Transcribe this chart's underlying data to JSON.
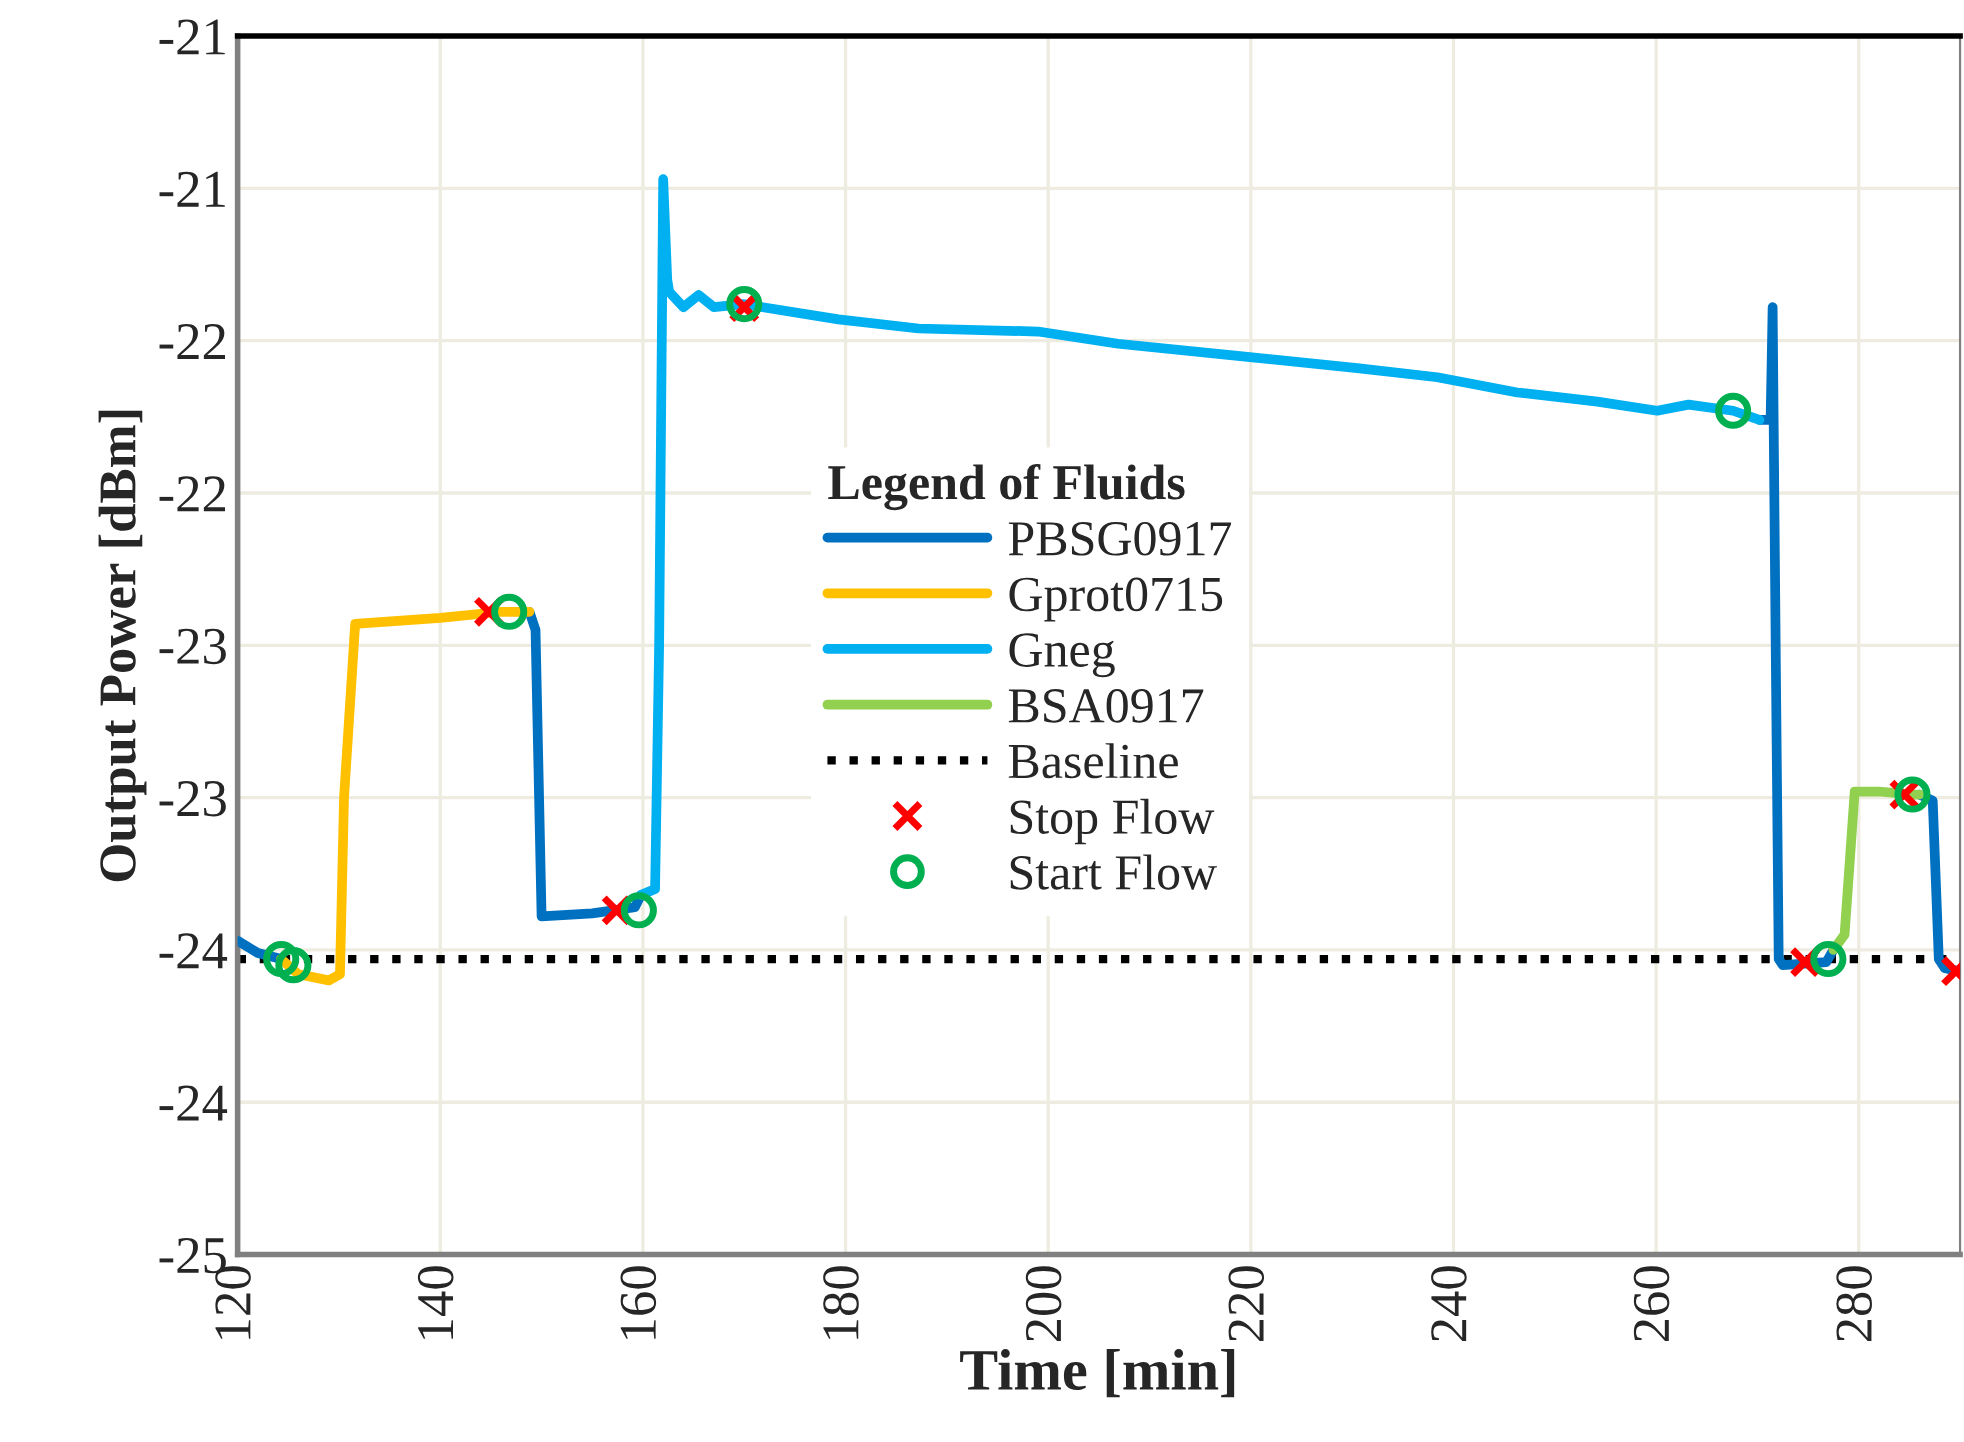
{
  "chart_data": {
    "type": "line",
    "xlabel": "Time [min]",
    "ylabel": "Output Power [dBm]",
    "legend_title": "Legend of Fluids",
    "xlim": [
      120,
      290
    ],
    "xticks": [
      120,
      140,
      160,
      180,
      200,
      220,
      240,
      260,
      280
    ],
    "ylim": [
      -24.5,
      -20.5
    ],
    "yticks": [
      {
        "value": -24.5,
        "label": "-25"
      },
      {
        "value": -24.0,
        "label": "-24"
      },
      {
        "value": -23.5,
        "label": "-24"
      },
      {
        "value": -23.0,
        "label": "-23"
      },
      {
        "value": -22.5,
        "label": "-23"
      },
      {
        "value": -22.0,
        "label": "-22"
      },
      {
        "value": -21.5,
        "label": "-22"
      },
      {
        "value": -21.0,
        "label": "-21"
      },
      {
        "value": -20.5,
        "label": "-21"
      }
    ],
    "grid": true,
    "legend": "center",
    "series": [
      {
        "name": "PBSG0917",
        "color": "#0070c0",
        "marker": "none",
        "line_style": "solid",
        "x": [
          120,
          122,
          124.3,
          136,
          148.8,
          149.4,
          150,
          155,
          159.2,
          159.8,
          265,
          270.2,
          271.3,
          271.5,
          271.8,
          272.1,
          272.5,
          276.8,
          277.5,
          282,
          286,
          287.3,
          287.9,
          288.5,
          290
        ],
        "values": [
          -23.47,
          -23.51,
          -23.53,
          null,
          -22.39,
          -22.45,
          -23.39,
          -23.38,
          -23.36,
          -23.32,
          null,
          -21.76,
          -21.76,
          -21.39,
          -22.5,
          -23.53,
          -23.55,
          -23.54,
          -23.5,
          null,
          -22.99,
          -23.01,
          -23.53,
          -23.56,
          -23.57
        ]
      },
      {
        "name": "Gprot0715",
        "color": "#ffc000",
        "marker": "none",
        "line_style": "solid",
        "x": [
          124.3,
          126,
          129,
          130.1,
          130.5,
          131.6,
          140,
          146,
          148.8
        ],
        "values": [
          -23.53,
          -23.58,
          -23.6,
          -23.58,
          -23.0,
          -22.43,
          -22.41,
          -22.39,
          -22.39
        ]
      },
      {
        "name": "Gneg",
        "color": "#00b0f0",
        "marker": "none",
        "line_style": "solid",
        "x": [
          159.8,
          161.2,
          161.6,
          162,
          162.4,
          162.6,
          164,
          165.5,
          167,
          169.9,
          179.3,
          187.2,
          199,
          206.9,
          218.7,
          230.5,
          238.4,
          246.3,
          254.2,
          260.1,
          263.2,
          267.6,
          270.2
        ],
        "values": [
          -23.32,
          -23.3,
          -22.5,
          -20.97,
          -21.3,
          -21.34,
          -21.39,
          -21.35,
          -21.39,
          -21.38,
          -21.43,
          -21.46,
          -21.47,
          -21.51,
          -21.55,
          -21.59,
          -21.62,
          -21.67,
          -21.7,
          -21.73,
          -21.71,
          -21.73,
          -21.76
        ]
      },
      {
        "name": "BSA0917",
        "color": "#92d050",
        "marker": "none",
        "line_style": "solid",
        "x": [
          277.5,
          278.6,
          279.6,
          282,
          285.3,
          286
        ],
        "values": [
          -23.5,
          -23.45,
          -22.98,
          -22.98,
          -22.99,
          -22.99
        ]
      },
      {
        "name": "Stop Flow",
        "color": "#ff0000",
        "type": "scatter",
        "marker": "cross",
        "x": [
          144.8,
          157.4,
          170,
          274.7,
          284.5,
          289.6
        ],
        "values": [
          -22.39,
          -23.37,
          -21.39,
          -23.54,
          -22.99,
          -23.57
        ]
      },
      {
        "name": "Start Flow",
        "color": "#00b050",
        "type": "scatter",
        "marker": "circle",
        "x": [
          124.3,
          125.5,
          146.8,
          159.6,
          170,
          267.6,
          277,
          285.3
        ],
        "values": [
          -23.53,
          -23.55,
          -22.39,
          -23.37,
          -21.38,
          -21.73,
          -23.53,
          -22.99
        ]
      }
    ],
    "ref_lines": [
      {
        "axis": "y",
        "value": -23.53,
        "label": "Baseline",
        "color": "#000000",
        "line_style": "dotted"
      }
    ]
  }
}
